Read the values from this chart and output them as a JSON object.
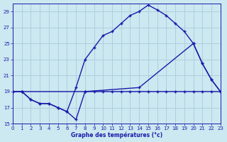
{
  "xlabel": "Graphe des températures (°c)",
  "bg_color": "#cce8f0",
  "grid_color": "#aaccdc",
  "line_color": "#1a1aaa",
  "xlim": [
    0,
    23
  ],
  "ylim": [
    15,
    30
  ],
  "yticks": [
    15,
    17,
    19,
    21,
    23,
    25,
    27,
    29
  ],
  "xticks": [
    0,
    1,
    2,
    3,
    4,
    5,
    6,
    7,
    8,
    9,
    10,
    11,
    12,
    13,
    14,
    15,
    16,
    17,
    18,
    19,
    20,
    21,
    22,
    23
  ],
  "line_min_x": [
    0,
    1,
    2,
    3,
    4,
    5,
    6,
    7,
    8,
    9,
    10,
    11,
    12,
    13,
    14,
    15,
    16,
    17,
    18,
    19,
    20,
    21,
    22,
    23
  ],
  "line_min_y": [
    19,
    19,
    18,
    17.5,
    17.5,
    17,
    16.5,
    15.5,
    19,
    19,
    19,
    19,
    19,
    19,
    19,
    19,
    19,
    19,
    19,
    19,
    19,
    19,
    19,
    19
  ],
  "line_max_x": [
    0,
    1,
    2,
    3,
    4,
    5,
    6,
    7,
    8,
    9,
    10,
    11,
    12,
    13,
    14,
    15,
    16,
    17,
    18,
    19,
    20,
    21,
    22,
    23
  ],
  "line_max_y": [
    19,
    19,
    18,
    17.5,
    17.5,
    17,
    16.5,
    19.5,
    23,
    24.5,
    26,
    26.5,
    27.5,
    28.5,
    29,
    29.8,
    29.2,
    28.5,
    27.5,
    26.5,
    25,
    22.5,
    20.5,
    19
  ],
  "line_diag_x": [
    0,
    1,
    8,
    14,
    20,
    21,
    22,
    23
  ],
  "line_diag_y": [
    19,
    19,
    19,
    19.5,
    25,
    22.5,
    20.5,
    19
  ]
}
